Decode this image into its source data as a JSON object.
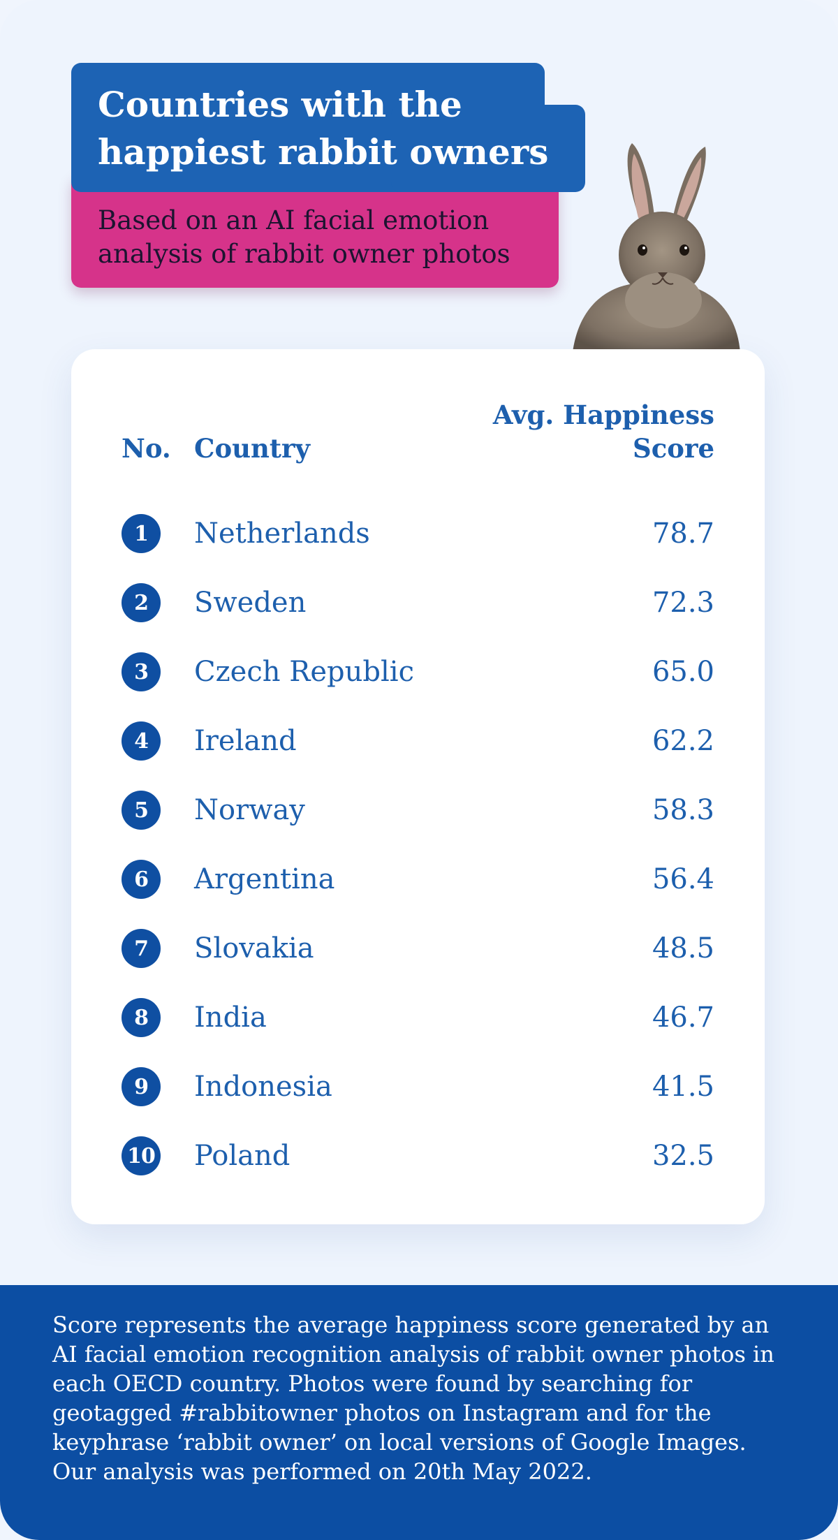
{
  "header": {
    "title": "Countries with the happiest rabbit owners",
    "subtitle": "Based on an AI facial emotion analysis of rabbit owner photos"
  },
  "table": {
    "columns": {
      "no": "No.",
      "country": "Country",
      "score": "Avg. Happiness Score"
    },
    "rows": [
      {
        "rank": "1",
        "country": "Netherlands",
        "score": "78.7"
      },
      {
        "rank": "2",
        "country": "Sweden",
        "score": "72.3"
      },
      {
        "rank": "3",
        "country": "Czech Republic",
        "score": "65.0"
      },
      {
        "rank": "4",
        "country": "Ireland",
        "score": "62.2"
      },
      {
        "rank": "5",
        "country": "Norway",
        "score": "58.3"
      },
      {
        "rank": "6",
        "country": "Argentina",
        "score": "56.4"
      },
      {
        "rank": "7",
        "country": "Slovakia",
        "score": "48.5"
      },
      {
        "rank": "8",
        "country": "India",
        "score": "46.7"
      },
      {
        "rank": "9",
        "country": "Indonesia",
        "score": "41.5"
      },
      {
        "rank": "10",
        "country": "Poland",
        "score": "32.5"
      }
    ]
  },
  "footer": {
    "note": "Score represents the average happiness score generated by an AI facial emotion recognition analysis of rabbit owner photos in each OECD country. Photos were found by searching for geotagged #rabbitowner photos on Instagram and for the keyphrase ‘rabbit owner’ on local versions of Google Images. Our analysis was performed on 20th May 2022."
  },
  "colors": {
    "background": "#eef4fd",
    "title_box": "#1d63b4",
    "subtitle_box": "#d6338a",
    "text_blue": "#1d5fad",
    "rank_badge": "#0f4fa2",
    "footer": "#0c4ea3"
  },
  "chart_data": {
    "type": "table",
    "title": "Countries with the happiest rabbit owners",
    "subtitle": "Based on an AI facial emotion analysis of rabbit owner photos",
    "columns": [
      "No.",
      "Country",
      "Avg. Happiness Score"
    ],
    "categories": [
      "Netherlands",
      "Sweden",
      "Czech Republic",
      "Ireland",
      "Norway",
      "Argentina",
      "Slovakia",
      "India",
      "Indonesia",
      "Poland"
    ],
    "values": [
      78.7,
      72.3,
      65.0,
      62.2,
      58.3,
      56.4,
      48.5,
      46.7,
      41.5,
      32.5
    ]
  }
}
